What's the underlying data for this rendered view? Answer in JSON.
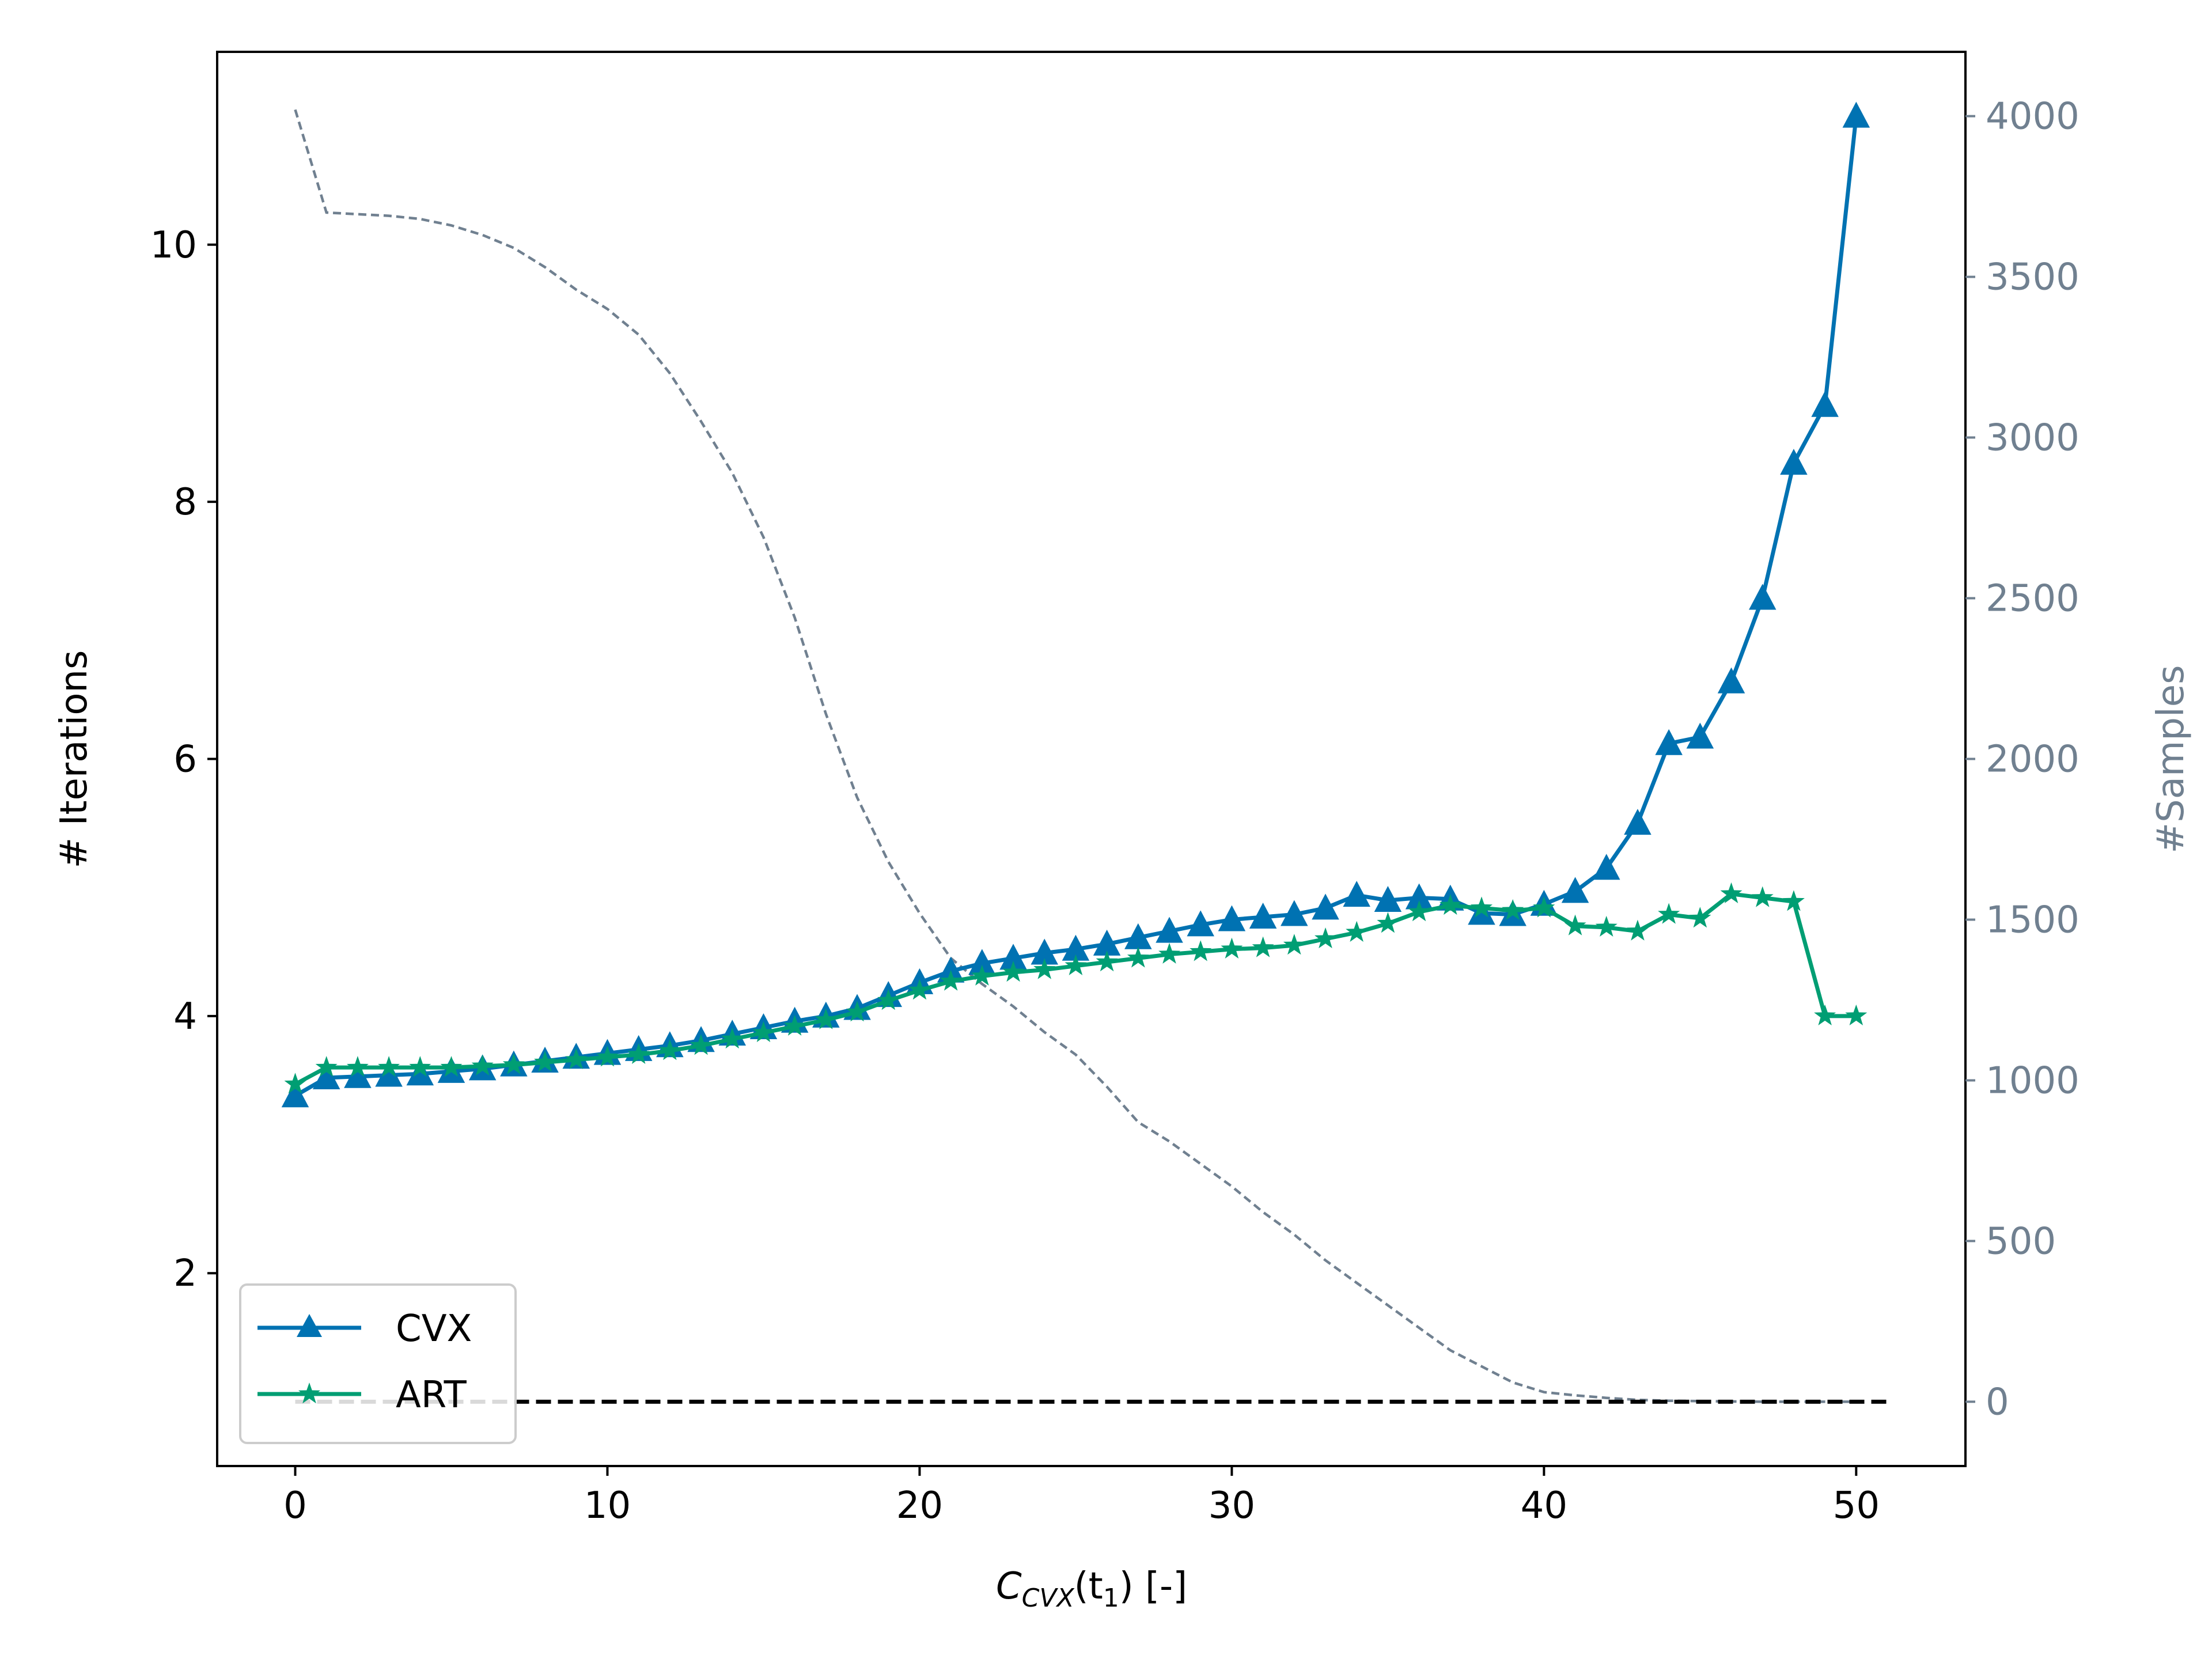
{
  "chart_data": {
    "type": "line",
    "xlabel": {
      "main": "C",
      "sub": "CVX",
      "rest": "(t",
      "sub2": "1",
      "end": ") [-]"
    },
    "ylabel_left": "# Iterations",
    "ylabel_right": "#Samples",
    "xlim": [
      -2.5,
      53.5
    ],
    "ylim_left": [
      0.5,
      11.5
    ],
    "ylim_right": [
      -200,
      4200
    ],
    "xticks": [
      "0",
      "10",
      "20",
      "30",
      "40",
      "50"
    ],
    "yticks_left": [
      "2",
      "4",
      "6",
      "8",
      "10"
    ],
    "yticks_right": [
      "0",
      "500",
      "1000",
      "1500",
      "2000",
      "2500",
      "3000",
      "3500",
      "4000"
    ],
    "legend": {
      "position": "lower-left",
      "entries": [
        "CVX",
        "ART"
      ]
    },
    "colors": {
      "cvx": "#0072b2",
      "art": "#009e73",
      "samples": "#708090",
      "reference": "#000000"
    },
    "series": [
      {
        "name": "CVX",
        "axis": "left",
        "marker": "triangle",
        "x": [
          0,
          1,
          2,
          3,
          4,
          5,
          6,
          7,
          8,
          9,
          10,
          11,
          12,
          13,
          14,
          15,
          16,
          17,
          18,
          19,
          20,
          21,
          22,
          23,
          24,
          25,
          26,
          27,
          28,
          29,
          30,
          31,
          32,
          33,
          34,
          35,
          36,
          37,
          38,
          39,
          40,
          41,
          42,
          43,
          44,
          45,
          46,
          47,
          48,
          49,
          50
        ],
        "y": [
          3.38,
          3.52,
          3.53,
          3.54,
          3.55,
          3.57,
          3.59,
          3.62,
          3.65,
          3.68,
          3.71,
          3.74,
          3.77,
          3.81,
          3.86,
          3.91,
          3.96,
          4.0,
          4.06,
          4.16,
          4.26,
          4.35,
          4.41,
          4.45,
          4.49,
          4.52,
          4.56,
          4.61,
          4.66,
          4.71,
          4.75,
          4.77,
          4.79,
          4.84,
          4.94,
          4.9,
          4.92,
          4.91,
          4.8,
          4.79,
          4.87,
          4.97,
          5.15,
          5.5,
          6.12,
          6.17,
          6.6,
          7.25,
          8.3,
          8.75,
          11.0
        ]
      },
      {
        "name": "ART",
        "axis": "left",
        "marker": "star",
        "x": [
          0,
          1,
          2,
          3,
          4,
          5,
          6,
          7,
          8,
          9,
          10,
          11,
          12,
          13,
          14,
          15,
          16,
          17,
          18,
          19,
          20,
          21,
          22,
          23,
          24,
          25,
          26,
          27,
          28,
          29,
          30,
          31,
          32,
          33,
          34,
          35,
          36,
          37,
          38,
          39,
          40,
          41,
          42,
          43,
          44,
          45,
          46,
          47,
          48,
          49,
          50
        ],
        "y": [
          3.47,
          3.6,
          3.6,
          3.6,
          3.6,
          3.6,
          3.61,
          3.62,
          3.64,
          3.66,
          3.68,
          3.7,
          3.73,
          3.77,
          3.82,
          3.87,
          3.92,
          3.97,
          4.03,
          4.12,
          4.2,
          4.27,
          4.31,
          4.34,
          4.36,
          4.39,
          4.42,
          4.45,
          4.48,
          4.5,
          4.52,
          4.53,
          4.55,
          4.6,
          4.65,
          4.72,
          4.81,
          4.86,
          4.84,
          4.82,
          4.84,
          4.7,
          4.69,
          4.66,
          4.79,
          4.76,
          4.95,
          4.92,
          4.89,
          4.0,
          4.0
        ]
      },
      {
        "name": "",
        "axis": "right",
        "style": "dashed",
        "x": [
          0,
          1,
          2,
          3,
          4,
          5,
          6,
          7,
          8,
          9,
          10,
          11,
          12,
          13,
          14,
          15,
          16,
          17,
          18,
          19,
          20,
          21,
          22,
          23,
          24,
          25,
          26,
          27,
          28,
          29,
          30,
          31,
          32,
          33,
          34,
          35,
          36,
          37,
          38,
          39,
          40,
          41,
          42,
          43,
          44,
          45,
          46,
          47,
          48,
          49,
          50
        ],
        "y": [
          4020,
          3700,
          3695,
          3690,
          3680,
          3660,
          3630,
          3590,
          3530,
          3460,
          3400,
          3320,
          3200,
          3050,
          2890,
          2690,
          2440,
          2140,
          1880,
          1680,
          1520,
          1380,
          1300,
          1230,
          1150,
          1080,
          980,
          870,
          810,
          740,
          670,
          590,
          520,
          440,
          370,
          300,
          230,
          160,
          110,
          60,
          30,
          20,
          12,
          6,
          3,
          2,
          1,
          0,
          0,
          0,
          0
        ]
      },
      {
        "name": "",
        "axis": "left",
        "style": "dashed",
        "x": [
          0,
          51
        ],
        "y": [
          1.0,
          1.0
        ]
      }
    ]
  }
}
